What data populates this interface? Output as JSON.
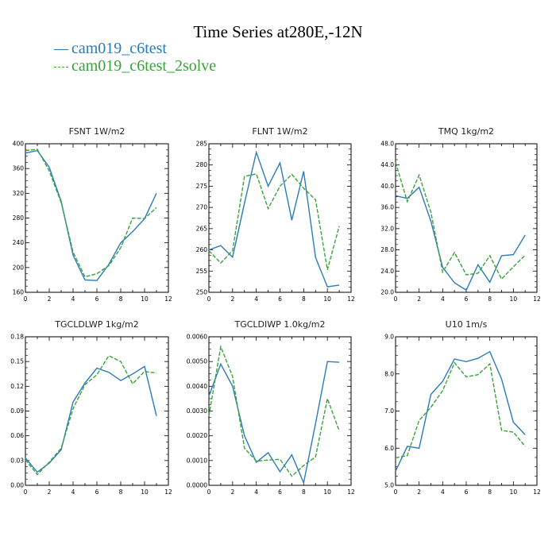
{
  "title": "Time Series at280E,-12N",
  "colors": {
    "series1": "#2b7bb9",
    "series2": "#39a33a"
  },
  "legend": [
    {
      "label": "cam019_c6test",
      "color": "#2b7bb9",
      "style": "solid"
    },
    {
      "label": "cam019_c6test_2solve",
      "color": "#39a33a",
      "style": "dashed"
    }
  ],
  "chart_data": [
    {
      "type": "line",
      "title": "FSNT   1W/m2",
      "x": [
        0,
        1,
        2,
        3,
        4,
        5,
        6,
        7,
        8,
        9,
        10,
        11
      ],
      "xlim": [
        0,
        12
      ],
      "xticks": [
        "0",
        "2",
        "4",
        "6",
        "8",
        "10",
        "12"
      ],
      "ylim": [
        160,
        400
      ],
      "yticks": [
        "160",
        "200",
        "240",
        "280",
        "320",
        "360",
        "400"
      ],
      "series": [
        {
          "name": "cam019_c6test",
          "values": [
            385,
            389,
            362,
            307,
            220,
            180,
            179,
            205,
            240,
            258,
            279,
            320
          ]
        },
        {
          "name": "cam019_c6test_2solve",
          "values": [
            389,
            391,
            356,
            305,
            225,
            185,
            190,
            203,
            232,
            280,
            279,
            297
          ]
        }
      ]
    },
    {
      "type": "line",
      "title": "FLNT   1W/m2",
      "x": [
        0,
        1,
        2,
        3,
        4,
        5,
        6,
        7,
        8,
        9,
        10,
        11
      ],
      "xlim": [
        0,
        12
      ],
      "xticks": [
        "0",
        "2",
        "4",
        "6",
        "8",
        "10",
        "12"
      ],
      "ylim": [
        250,
        285
      ],
      "yticks": [
        "250",
        "255",
        "260",
        "265",
        "270",
        "275",
        "280",
        "285"
      ],
      "series": [
        {
          "name": "cam019_c6test",
          "values": [
            260,
            261,
            258.3,
            271,
            283,
            275,
            280.5,
            267,
            278.5,
            258.2,
            251.3,
            251.7
          ]
        },
        {
          "name": "cam019_c6test_2solve",
          "values": [
            259.8,
            256.9,
            259.8,
            277.3,
            277.9,
            269.7,
            275,
            277.8,
            274.5,
            271.8,
            255.3,
            265.6
          ]
        }
      ]
    },
    {
      "type": "line",
      "title": "TMQ   1kg/m2",
      "x": [
        0,
        1,
        2,
        3,
        4,
        5,
        6,
        7,
        8,
        9,
        10,
        11
      ],
      "xlim": [
        0,
        12
      ],
      "xticks": [
        "0",
        "2",
        "4",
        "6",
        "8",
        "10",
        "12"
      ],
      "ylim": [
        20,
        48
      ],
      "yticks": [
        "20.0",
        "24.0",
        "28.0",
        "32.0",
        "36.0",
        "40.0",
        "44.0",
        "48.0"
      ],
      "series": [
        {
          "name": "cam019_c6test",
          "values": [
            38.2,
            37.7,
            39.8,
            33.4,
            24.7,
            21.8,
            20.4,
            25.2,
            21.9,
            26.9,
            27.1,
            30.8
          ]
        },
        {
          "name": "cam019_c6test_2solve",
          "values": [
            44.5,
            37.1,
            42.1,
            35.1,
            23.8,
            27.5,
            23.3,
            23.6,
            26.9,
            22.5,
            24.8,
            27
          ]
        }
      ]
    },
    {
      "type": "line",
      "title": "TGCLDLWP   1kg/m2",
      "x": [
        0,
        1,
        2,
        3,
        4,
        5,
        6,
        7,
        8,
        9,
        10,
        11
      ],
      "xlim": [
        0,
        12
      ],
      "xticks": [
        "0",
        "2",
        "4",
        "6",
        "8",
        "10",
        "12"
      ],
      "ylim": [
        0,
        0.18
      ],
      "yticks": [
        "0.00",
        "0.03",
        "0.06",
        "0.09",
        "0.12",
        "0.15",
        "0.18"
      ],
      "series": [
        {
          "name": "cam019_c6test",
          "values": [
            0.033,
            0.016,
            0.027,
            0.043,
            0.101,
            0.124,
            0.142,
            0.137,
            0.127,
            0.135,
            0.144,
            0.084
          ]
        },
        {
          "name": "cam019_c6test_2solve",
          "values": [
            0.031,
            0.013,
            0.028,
            0.045,
            0.093,
            0.122,
            0.134,
            0.157,
            0.15,
            0.123,
            0.138,
            0.136
          ]
        }
      ]
    },
    {
      "type": "line",
      "title": "TGCLDIWP   1.0kg/m2",
      "x": [
        0,
        1,
        2,
        3,
        4,
        5,
        6,
        7,
        8,
        9,
        10,
        11
      ],
      "xlim": [
        0,
        12
      ],
      "xticks": [
        "0",
        "2",
        "4",
        "6",
        "8",
        "10",
        "12"
      ],
      "ylim": [
        0,
        0.006
      ],
      "yticks": [
        "0.0000",
        "0.0010",
        "0.0020",
        "0.0030",
        "0.0040",
        "0.0050",
        "0.0060"
      ],
      "series": [
        {
          "name": "cam019_c6test",
          "values": [
            0.0036,
            0.0049,
            0.004,
            0.002,
            0.00093,
            0.00132,
            0.00055,
            0.00123,
            0.0001,
            0.0025,
            0.005,
            0.00497
          ]
        },
        {
          "name": "cam019_c6test_2solve",
          "values": [
            0.0028,
            0.0056,
            0.0044,
            0.0015,
            0.00098,
            0.00102,
            0.00105,
            0.00037,
            0.0008,
            0.00115,
            0.0035,
            0.0022
          ]
        }
      ]
    },
    {
      "type": "line",
      "title": "U10   1m/s",
      "x": [
        0,
        1,
        2,
        3,
        4,
        5,
        6,
        7,
        8,
        9,
        10,
        11
      ],
      "xlim": [
        0,
        12
      ],
      "xticks": [
        "0",
        "2",
        "4",
        "6",
        "8",
        "10",
        "12"
      ],
      "ylim": [
        5,
        9
      ],
      "yticks": [
        "5.0",
        "6.0",
        "7.0",
        "8.0",
        "9.0"
      ],
      "series": [
        {
          "name": "cam019_c6test",
          "values": [
            5.38,
            6.05,
            6.0,
            7.45,
            7.8,
            8.4,
            8.33,
            8.42,
            8.6,
            7.86,
            6.7,
            6.36
          ]
        },
        {
          "name": "cam019_c6test_2solve",
          "values": [
            5.74,
            5.8,
            6.75,
            7.1,
            7.55,
            8.3,
            7.92,
            7.98,
            8.27,
            6.48,
            6.43,
            6.05
          ]
        }
      ]
    }
  ]
}
